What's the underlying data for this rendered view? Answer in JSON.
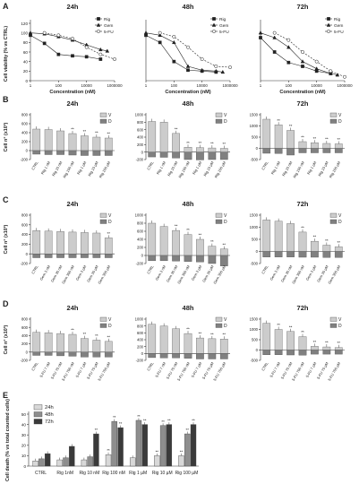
{
  "panels": {
    "A": "A",
    "B": "B",
    "C": "C",
    "D": "D",
    "E": "E"
  },
  "times": [
    "24h",
    "48h",
    "72h"
  ],
  "colors": {
    "rig": "#111111",
    "gem": "#444444",
    "fu": "#777777",
    "viable": "#cccccc",
    "dead": "#808080",
    "e24": "#d8d8d8",
    "e48": "#8e8e8e",
    "e72": "#3a3a3a",
    "axis": "#333333"
  },
  "chart_data": [
    {
      "panel": "A",
      "type": "line",
      "title": [
        "24h",
        "48h",
        "72h"
      ],
      "xlabel": "Concentration (nM)",
      "ylabel": "Cell viability (% vs CTRL)",
      "xscale": "log",
      "xlim": [
        1,
        1000000
      ],
      "ylim": [
        0,
        120
      ],
      "xticks": [
        "1",
        "100",
        "10000",
        "1000000"
      ],
      "yticks": [
        0,
        20,
        40,
        60,
        80,
        100,
        120
      ],
      "legend": [
        "Rig",
        "Gem",
        "5-FU"
      ],
      "legend_position": "top-right",
      "series": [
        {
          "name": "Rig",
          "marker": "square",
          "x": [
            1,
            10,
            100,
            1000,
            10000,
            100000
          ],
          "y24": [
            95,
            78,
            55,
            52,
            50,
            45
          ],
          "y48": [
            95,
            80,
            40,
            22,
            20,
            18
          ],
          "y72": [
            90,
            60,
            38,
            30,
            20,
            15
          ]
        },
        {
          "name": "Gem",
          "marker": "triangle",
          "x": [
            1,
            10,
            100,
            1000,
            10000,
            100000,
            300000
          ],
          "y24": [
            100,
            98,
            92,
            85,
            75,
            65,
            62
          ],
          "y48": [
            100,
            95,
            80,
            30,
            22,
            20,
            18
          ],
          "y72": [
            100,
            90,
            70,
            40,
            25,
            15,
            12
          ]
        },
        {
          "name": "5-FU",
          "marker": "circle",
          "x": [
            10,
            100,
            1000,
            10000,
            100000,
            1000000
          ],
          "y24": [
            100,
            95,
            88,
            70,
            55,
            45
          ],
          "y48": [
            100,
            92,
            70,
            45,
            30,
            28
          ],
          "y72": [
            100,
            85,
            60,
            40,
            20,
            8
          ]
        }
      ]
    },
    {
      "panel": "B",
      "type": "bar",
      "ylabel": "Cell n° (x10³)",
      "legend": [
        "V",
        "D"
      ],
      "ylim_24": [
        -200,
        800
      ],
      "ylim_48": [
        -200,
        1000
      ],
      "ylim_72": [
        -500,
        1500
      ],
      "categories": [
        "CTRL",
        "Rig 1 nM",
        "Rig 10 nM",
        "Rig 100 nM",
        "Rig 1 µM",
        "Rig 10 µM",
        "Rig 100 µM"
      ],
      "viable_24": [
        480,
        470,
        440,
        380,
        330,
        300,
        280
      ],
      "dead_24": [
        -80,
        -90,
        -90,
        -100,
        -110,
        -110,
        -110
      ],
      "viable_48": [
        820,
        800,
        500,
        130,
        120,
        110,
        100
      ],
      "dead_48": [
        -130,
        -140,
        -160,
        -200,
        -210,
        -200,
        -200
      ],
      "viable_72": [
        1300,
        1050,
        800,
        300,
        250,
        220,
        200
      ],
      "dead_72": [
        -220,
        -230,
        -300,
        -200,
        -200,
        -200,
        -200
      ],
      "sig_24": [
        "",
        "",
        "",
        "**",
        "**",
        "**",
        "**"
      ],
      "sig_48": [
        "",
        "",
        "**",
        "**",
        "**",
        "**",
        "**"
      ],
      "sig_72": [
        "",
        "**",
        "**",
        "**",
        "**",
        "**",
        "**"
      ]
    },
    {
      "panel": "C",
      "type": "bar",
      "ylabel": "Cell n° (x10³)",
      "legend": [
        "V",
        "D"
      ],
      "ylim_24": [
        -200,
        800
      ],
      "ylim_48": [
        -200,
        1000
      ],
      "ylim_72": [
        -500,
        1500
      ],
      "categories": [
        "CTRL",
        "Gem 3 nM",
        "Gem 30 nM",
        "Gem 300 nM",
        "Gem 3 µM",
        "Gem 30 µM",
        "Gem 300 µM"
      ],
      "viable_24": [
        480,
        470,
        460,
        450,
        440,
        430,
        330
      ],
      "dead_24": [
        -80,
        -80,
        -80,
        -80,
        -80,
        -80,
        -80
      ],
      "viable_48": [
        800,
        720,
        620,
        520,
        400,
        230,
        160
      ],
      "dead_48": [
        -130,
        -130,
        -140,
        -150,
        -160,
        -200,
        -260
      ],
      "viable_72": [
        1300,
        1250,
        1150,
        800,
        420,
        260,
        190
      ],
      "dead_72": [
        -230,
        -230,
        -230,
        -240,
        -240,
        -250,
        -250
      ],
      "sig_24": [
        "",
        "",
        "",
        "",
        "",
        "",
        "**"
      ],
      "sig_48": [
        "",
        "",
        "**",
        "**",
        "**",
        "**",
        "**"
      ],
      "sig_72": [
        "",
        "",
        "",
        "**",
        "**",
        "**",
        "**"
      ]
    },
    {
      "panel": "D",
      "type": "bar",
      "ylabel": "Cell n° (x10³)",
      "legend": [
        "V",
        "D"
      ],
      "ylim_24": [
        -200,
        800
      ],
      "ylim_48": [
        -200,
        1000
      ],
      "ylim_72": [
        -500,
        1500
      ],
      "categories": [
        "CTRL",
        "5-FU 7 nM",
        "5-FU 70 nM",
        "5-FU 700 nM",
        "5-FU 7 µM",
        "5-FU 70 µM",
        "5-FU 700 µM"
      ],
      "viable_24": [
        480,
        470,
        450,
        430,
        330,
        290,
        260
      ],
      "dead_24": [
        -80,
        -80,
        -90,
        -100,
        -120,
        -120,
        -120
      ],
      "viable_48": [
        850,
        800,
        720,
        580,
        450,
        430,
        420
      ],
      "dead_48": [
        -120,
        -130,
        -130,
        -140,
        -160,
        -160,
        -160
      ],
      "viable_72": [
        1300,
        1000,
        900,
        650,
        180,
        150,
        120
      ],
      "dead_72": [
        -230,
        -230,
        -240,
        -250,
        -200,
        -200,
        -200
      ],
      "sig_24": [
        "",
        "",
        "",
        "**",
        "**",
        "**",
        "**"
      ],
      "sig_48": [
        "",
        "",
        "",
        "**",
        "**",
        "**",
        "**"
      ],
      "sig_72": [
        "",
        "**",
        "**",
        "**",
        "**",
        "**",
        "**"
      ]
    },
    {
      "panel": "E",
      "type": "bar",
      "ylabel": "Cell death (% vs total counted cells)",
      "ylim": [
        0,
        50
      ],
      "yticks": [
        0,
        10,
        20,
        30,
        40,
        50
      ],
      "legend_position": "top-left",
      "categories": [
        "CTRL",
        "Rig 1nM",
        "Rig 10 nM",
        "Rig 100 nM",
        "Rig 1 µM",
        "Rig 10 µM",
        "Rig 100 µM"
      ],
      "series": [
        {
          "name": "24h",
          "values": [
            5,
            6,
            6,
            11,
            8,
            10,
            10
          ],
          "sig": [
            "",
            "",
            "",
            "**",
            "",
            "**",
            "**"
          ]
        },
        {
          "name": "48h",
          "values": [
            7,
            8,
            9,
            43,
            44,
            39,
            31
          ],
          "sig": [
            "",
            "",
            "",
            "**",
            "**",
            "**",
            "**"
          ]
        },
        {
          "name": "72h",
          "values": [
            12,
            19,
            31,
            37,
            40,
            40,
            40
          ],
          "sig": [
            "",
            "",
            "**",
            "**",
            "**",
            "**",
            "**"
          ]
        }
      ]
    }
  ]
}
